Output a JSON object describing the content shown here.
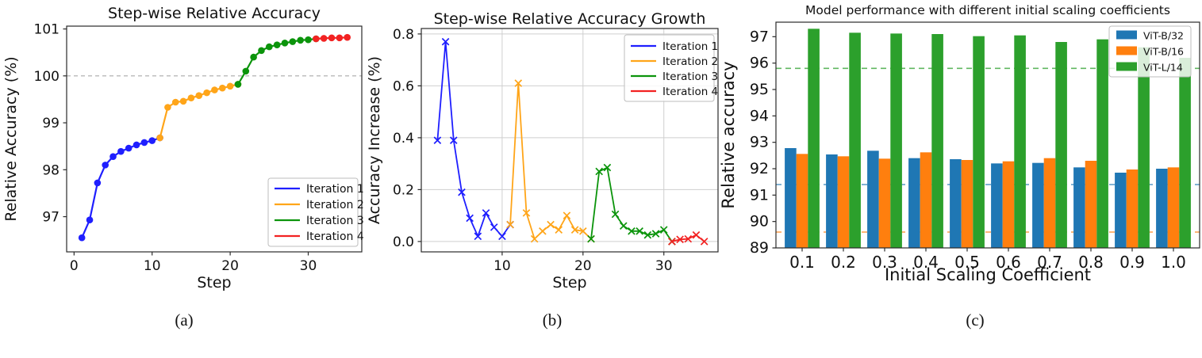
{
  "figure": {
    "captions": [
      "(a)",
      "(b)",
      "(c)"
    ]
  },
  "chart_data": [
    {
      "id": "a",
      "type": "line",
      "title": "Step-wise Relative Accuracy",
      "xlabel": "Step",
      "ylabel": "Relative Accuracy (%)",
      "xlim": [
        -0.95,
        36.86
      ],
      "ylim": [
        96.25,
        101.06
      ],
      "xticks": [
        0,
        10,
        20,
        30
      ],
      "xtick_labels": [
        "0",
        "10",
        "20",
        "30"
      ],
      "yticks": [
        97,
        98,
        99,
        100,
        101
      ],
      "ytick_labels": [
        "97",
        "98",
        "99",
        "100",
        "101"
      ],
      "grid": false,
      "marker": "circle",
      "hlines": [
        {
          "y": 100,
          "color": "#aaaaaa",
          "dash": "5 4",
          "width": 1.2,
          "opacity": 1
        }
      ],
      "legend": {
        "position": "lower-right",
        "style": "line"
      },
      "series": [
        {
          "name": "Iteration 1",
          "color": "#1f1fff",
          "x": [
            1,
            2,
            3,
            4,
            5,
            6,
            7,
            8,
            9,
            10,
            11
          ],
          "y": [
            96.55,
            96.93,
            97.72,
            98.1,
            98.28,
            98.39,
            98.46,
            98.53,
            98.58,
            98.62,
            98.68
          ]
        },
        {
          "name": "Iteration 2",
          "color": "#ffa519",
          "x": [
            11,
            12,
            13,
            14,
            15,
            16,
            17,
            18,
            19,
            20,
            21
          ],
          "y": [
            98.68,
            99.33,
            99.44,
            99.46,
            99.53,
            99.58,
            99.64,
            99.7,
            99.74,
            99.78,
            99.82
          ]
        },
        {
          "name": "Iteration 3",
          "color": "#0b940b",
          "x": [
            21,
            22,
            23,
            24,
            25,
            26,
            27,
            28,
            29,
            30,
            31
          ],
          "y": [
            99.82,
            100.1,
            100.4,
            100.54,
            100.62,
            100.66,
            100.7,
            100.73,
            100.76,
            100.77,
            100.79
          ]
        },
        {
          "name": "Iteration 4",
          "color": "#f22222",
          "x": [
            31,
            32,
            33,
            34,
            35
          ],
          "y": [
            100.79,
            100.8,
            100.81,
            100.81,
            100.82
          ]
        }
      ]
    },
    {
      "id": "b",
      "type": "line",
      "title": "Step-wise Relative Accuracy Growth",
      "xlabel": "Step",
      "ylabel": "Accuracy Increase (%)",
      "xlim": [
        0,
        36.7
      ],
      "ylim": [
        -0.04,
        0.821
      ],
      "xticks": [
        10,
        20,
        30
      ],
      "xtick_labels": [
        "10",
        "20",
        "30"
      ],
      "yticks": [
        0.0,
        0.2,
        0.4,
        0.6,
        0.8
      ],
      "ytick_labels": [
        "0.0",
        "0.2",
        "0.4",
        "0.6",
        "0.8"
      ],
      "grid": true,
      "marker": "x",
      "hlines": [],
      "legend": {
        "position": "upper-right",
        "style": "line"
      },
      "series": [
        {
          "name": "Iteration 1",
          "color": "#1f1fff",
          "x": [
            2,
            3,
            4,
            5,
            6,
            7,
            8,
            9,
            10,
            11
          ],
          "y": [
            0.39,
            0.77,
            0.39,
            0.19,
            0.09,
            0.02,
            0.11,
            0.055,
            0.02,
            0.065
          ]
        },
        {
          "name": "Iteration 2",
          "color": "#ffa519",
          "x": [
            11,
            12,
            13,
            14,
            15,
            16,
            17,
            18,
            19,
            20,
            21
          ],
          "y": [
            0.065,
            0.61,
            0.11,
            0.01,
            0.04,
            0.065,
            0.045,
            0.1,
            0.045,
            0.04,
            0.01
          ]
        },
        {
          "name": "Iteration 3",
          "color": "#0b940b",
          "x": [
            21,
            22,
            23,
            24,
            25,
            26,
            27,
            28,
            29,
            30,
            31
          ],
          "y": [
            0.01,
            0.27,
            0.285,
            0.105,
            0.06,
            0.04,
            0.04,
            0.025,
            0.03,
            0.045,
            0.0
          ]
        },
        {
          "name": "Iteration 4",
          "color": "#f22222",
          "x": [
            31,
            32,
            33,
            34,
            35
          ],
          "y": [
            0.0,
            0.008,
            0.01,
            0.025,
            0.0
          ]
        }
      ]
    },
    {
      "id": "c",
      "type": "bar",
      "title": "Model performance with different initial scaling coefficients",
      "xlabel": "Initial Scaling Coefficient",
      "ylabel": "Relative accuracy",
      "categories": [
        "0.1",
        "0.2",
        "0.3",
        "0.4",
        "0.5",
        "0.6",
        "0.7",
        "0.8",
        "0.9",
        "1.0"
      ],
      "ylim": [
        89,
        97.55
      ],
      "yticks": [
        89,
        90,
        91,
        92,
        93,
        94,
        95,
        96,
        97
      ],
      "ytick_labels": [
        "89",
        "90",
        "91",
        "92",
        "93",
        "94",
        "95",
        "96",
        "97"
      ],
      "grid": false,
      "legend": {
        "position": "upper-right",
        "style": "swatch"
      },
      "series": [
        {
          "name": "ViT-B/32",
          "color": "#1f77b4",
          "mean_line": 91.4,
          "values": [
            92.78,
            92.54,
            92.68,
            92.4,
            92.36,
            92.2,
            92.22,
            92.05,
            91.85,
            92.0
          ]
        },
        {
          "name": "ViT-B/16",
          "color": "#ff7f0e",
          "mean_line": 89.6,
          "values": [
            92.56,
            92.47,
            92.38,
            92.62,
            92.33,
            92.28,
            92.4,
            92.3,
            91.97,
            92.05
          ]
        },
        {
          "name": "ViT-L/14",
          "color": "#2ca02c",
          "mean_line": 95.8,
          "values": [
            97.3,
            97.15,
            97.12,
            97.1,
            97.02,
            97.05,
            96.8,
            96.9,
            96.6,
            96.2
          ]
        }
      ]
    }
  ]
}
